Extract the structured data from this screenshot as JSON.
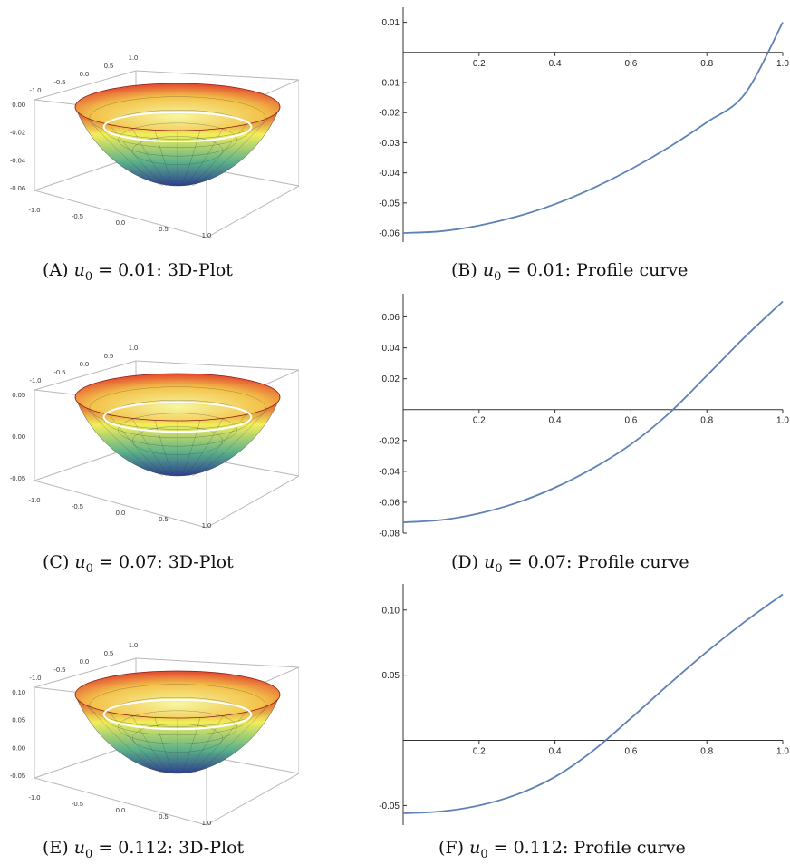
{
  "colors": {
    "curve": "#5e81b5",
    "axis": "#333333",
    "box": "#b8b8b8",
    "surface_top": "#d73027",
    "surface_mid": "#f2ef5a",
    "surface_low": "#5bb18a",
    "surface_bottom": "#2c3f8f",
    "ring": "#ffffff"
  },
  "captions": [
    {
      "label": "(A)",
      "var": "u",
      "sub": "0",
      "rest": " = 0.01:  3D-Plot"
    },
    {
      "label": "(B)",
      "var": "u",
      "sub": "0",
      "rest": " = 0.01:  Profile curve"
    },
    {
      "label": "(C)",
      "var": "u",
      "sub": "0",
      "rest": " = 0.07:  3D-Plot"
    },
    {
      "label": "(D)",
      "var": "u",
      "sub": "0",
      "rest": " = 0.07:  Profile curve"
    },
    {
      "label": "(E)",
      "var": "u",
      "sub": "0",
      "rest": " = 0.112:  3D-Plot"
    },
    {
      "label": "(F)",
      "var": "u",
      "sub": "0",
      "rest": " = 0.112:  Profile curve"
    }
  ],
  "chart_data": [
    {
      "type": "surface3d",
      "panel": "A",
      "x_ticks": [
        "-1.0",
        "-0.5",
        "0.0",
        "0.5",
        "1.0"
      ],
      "y_ticks": [
        "-1.0",
        "-0.5",
        "0.0",
        "0.5",
        "1.0"
      ],
      "z_ticks": [
        "0.00",
        "-0.02",
        "-0.04",
        "-0.06"
      ],
      "zlim": [
        -0.06,
        0.01
      ]
    },
    {
      "type": "line",
      "panel": "B",
      "xlim": [
        0,
        1
      ],
      "ylim": [
        -0.063,
        0.015
      ],
      "x_ticks": [
        0.2,
        0.4,
        0.6,
        0.8,
        1.0
      ],
      "x_tick_labels": [
        "0.2",
        "0.4",
        "0.6",
        "0.8",
        "1.0"
      ],
      "y_ticks": [
        0.01,
        -0.01,
        -0.02,
        -0.03,
        -0.04,
        -0.05,
        -0.06
      ],
      "y_tick_labels": [
        "0.01",
        "-0.01",
        "-0.02",
        "-0.03",
        "-0.04",
        "-0.05",
        "-0.06"
      ],
      "x": [
        0,
        0.1,
        0.2,
        0.3,
        0.4,
        0.5,
        0.6,
        0.7,
        0.8,
        0.9,
        1.0
      ],
      "y": [
        -0.06,
        -0.0594,
        -0.0575,
        -0.0545,
        -0.0504,
        -0.0451,
        -0.0388,
        -0.0315,
        -0.0232,
        -0.0138,
        0.01
      ]
    },
    {
      "type": "surface3d",
      "panel": "C",
      "x_ticks": [
        "-1.0",
        "-0.5",
        "0.0",
        "0.5",
        "1.0"
      ],
      "y_ticks": [
        "-1.0",
        "-0.5",
        "0.0",
        "0.5",
        "1.0"
      ],
      "z_ticks": [
        "0.05",
        "0.00",
        "-0.05"
      ],
      "zlim": [
        -0.073,
        0.07
      ]
    },
    {
      "type": "line",
      "panel": "D",
      "xlim": [
        0,
        1
      ],
      "ylim": [
        -0.08,
        0.075
      ],
      "x_ticks": [
        0.2,
        0.4,
        0.6,
        0.8,
        1.0
      ],
      "x_tick_labels": [
        "0.2",
        "0.4",
        "0.6",
        "0.8",
        "1.0"
      ],
      "y_ticks": [
        0.06,
        0.04,
        0.02,
        -0.02,
        -0.04,
        -0.06,
        -0.08
      ],
      "y_tick_labels": [
        "0.06",
        "0.04",
        "0.02",
        "-0.02",
        "-0.04",
        "-0.06",
        "-0.08"
      ],
      "x": [
        0,
        0.1,
        0.2,
        0.3,
        0.4,
        0.5,
        0.6,
        0.7,
        0.8,
        0.9,
        1.0
      ],
      "y": [
        -0.073,
        -0.0715,
        -0.0672,
        -0.0603,
        -0.0505,
        -0.038,
        -0.0225,
        -0.0025,
        0.022,
        0.047,
        0.07
      ]
    },
    {
      "type": "surface3d",
      "panel": "E",
      "x_ticks": [
        "-1.0",
        "-0.5",
        "0.0",
        "0.5",
        "1.0"
      ],
      "y_ticks": [
        "-1.0",
        "-0.5",
        "0.0",
        "0.5",
        "1.0"
      ],
      "z_ticks": [
        "0.10",
        "0.05",
        "0.00",
        "-0.05"
      ],
      "zlim": [
        -0.056,
        0.112
      ]
    },
    {
      "type": "line",
      "panel": "F",
      "xlim": [
        0,
        1
      ],
      "ylim": [
        -0.065,
        0.12
      ],
      "x_ticks": [
        0.2,
        0.4,
        0.6,
        0.8,
        1.0
      ],
      "x_tick_labels": [
        "0.2",
        "0.4",
        "0.6",
        "0.8",
        "1.0"
      ],
      "y_ticks": [
        0.1,
        0.05,
        -0.05
      ],
      "y_tick_labels": [
        "0.10",
        "0.05",
        "-0.05"
      ],
      "x": [
        0,
        0.1,
        0.2,
        0.3,
        0.4,
        0.5,
        0.6,
        0.7,
        0.8,
        0.9,
        1.0
      ],
      "y": [
        -0.056,
        -0.0545,
        -0.05,
        -0.0415,
        -0.028,
        -0.008,
        0.017,
        0.043,
        0.068,
        0.091,
        0.112
      ]
    }
  ]
}
